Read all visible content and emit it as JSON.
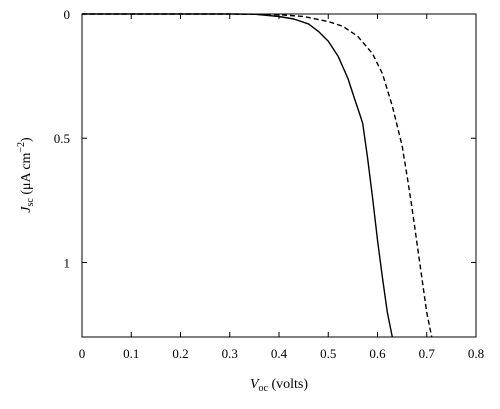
{
  "chart_data": {
    "type": "line",
    "title": "",
    "xlabel": {
      "symbol": "V",
      "subscript": "oc",
      "rest": " (volts)"
    },
    "ylabel": {
      "symbol": "J",
      "subscript": "sc",
      "rest": " (μA cm",
      "exponent": "−2",
      "close": ")"
    },
    "xlim": [
      0,
      0.8
    ],
    "ylim": [
      0,
      1.3
    ],
    "y_inverted": true,
    "grid": false,
    "legend": "none",
    "x_ticks": [
      {
        "value": 0,
        "label": "0"
      },
      {
        "value": 0.1,
        "label": "0.1"
      },
      {
        "value": 0.2,
        "label": "0.2"
      },
      {
        "value": 0.3,
        "label": "0.3"
      },
      {
        "value": 0.4,
        "label": "0.4"
      },
      {
        "value": 0.5,
        "label": "0.5"
      },
      {
        "value": 0.6,
        "label": "0.6"
      },
      {
        "value": 0.7,
        "label": "0.7"
      },
      {
        "value": 0.8,
        "label": "0.8"
      }
    ],
    "y_ticks": [
      {
        "value": 0,
        "label": "0"
      },
      {
        "value": 0.5,
        "label": "0.5"
      },
      {
        "value": 1,
        "label": "1"
      }
    ],
    "series": [
      {
        "style": "solid",
        "color": "#000000",
        "x": [
          0,
          0.1,
          0.2,
          0.3,
          0.35,
          0.4,
          0.43,
          0.46,
          0.48,
          0.5,
          0.52,
          0.54,
          0.555,
          0.565,
          0.57,
          0.58,
          0.59,
          0.6,
          0.61,
          0.62,
          0.63
        ],
        "y": [
          0,
          0,
          0,
          0,
          0.001,
          0.01,
          0.02,
          0.04,
          0.07,
          0.11,
          0.17,
          0.26,
          0.35,
          0.41,
          0.44,
          0.58,
          0.74,
          0.91,
          1.06,
          1.2,
          1.3
        ]
      },
      {
        "style": "dashed",
        "color": "#000000",
        "x": [
          0,
          0.1,
          0.2,
          0.3,
          0.4,
          0.45,
          0.5,
          0.53,
          0.56,
          0.59,
          0.61,
          0.63,
          0.65,
          0.66,
          0.67,
          0.68,
          0.69,
          0.7,
          0.71
        ],
        "y": [
          0,
          0,
          0,
          0,
          0.003,
          0.01,
          0.03,
          0.05,
          0.09,
          0.16,
          0.24,
          0.37,
          0.53,
          0.65,
          0.78,
          0.92,
          1.06,
          1.2,
          1.3
        ]
      }
    ]
  }
}
